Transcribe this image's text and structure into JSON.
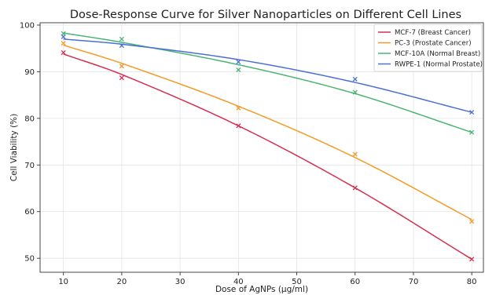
{
  "chart_data": {
    "type": "scatter",
    "title": "Dose-Response Curve for Silver Nanoparticles on Different Cell Lines",
    "xlabel": "Dose of AgNPs (μg/ml)",
    "ylabel": "Cell Viability (%)",
    "xlim": [
      6,
      82
    ],
    "ylim": [
      47,
      100.5
    ],
    "xticks": [
      10,
      20,
      30,
      40,
      50,
      60,
      70,
      80
    ],
    "yticks": [
      50,
      60,
      70,
      80,
      90,
      100
    ],
    "grid": true,
    "legend_position": "top-right",
    "x": [
      10,
      20,
      40,
      60,
      80
    ],
    "series": [
      {
        "name": "MCF-7 (Breast Cancer)",
        "color": "#d62f4f",
        "values": [
          94.1,
          88.7,
          78.4,
          65.1,
          49.8
        ],
        "fit": [
          93.8,
          89.4,
          78.4,
          65.1,
          49.8
        ]
      },
      {
        "name": "PC-3 (Prostate Cancer)",
        "color": "#f39b26",
        "values": [
          96.1,
          91.2,
          82.2,
          72.3,
          57.9
        ],
        "fit": [
          95.7,
          91.8,
          82.6,
          71.6,
          58.3
        ]
      },
      {
        "name": "MCF-10A (Normal Breast)",
        "color": "#49b573",
        "values": [
          98.2,
          97.0,
          90.4,
          85.6,
          77.0
        ],
        "fit": [
          98.3,
          96.3,
          91.5,
          85.3,
          77.0
        ]
      },
      {
        "name": "RWPE-1 (Normal Prostate)",
        "color": "#4c6fd6",
        "values": [
          97.5,
          95.6,
          92.1,
          88.4,
          81.3
        ],
        "fit": [
          97.0,
          95.9,
          92.6,
          87.7,
          81.3
        ]
      }
    ]
  }
}
